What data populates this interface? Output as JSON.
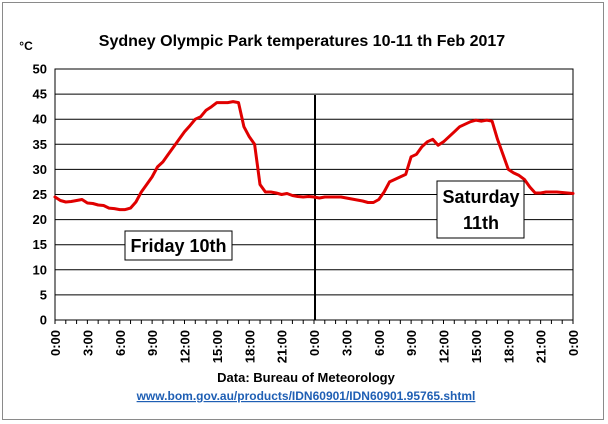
{
  "chart_data": {
    "type": "line",
    "title": "Sydney Olympic Park temperatures 10-11 th Feb 2017",
    "unit_label": "°C",
    "source": "Data: Bureau of Meteorology",
    "source_url": "www.bom.gov.au/products/IDN60901/IDN60901.95765.shtml",
    "ylim": [
      0,
      50
    ],
    "yticks": [
      "0",
      "5",
      "10",
      "15",
      "20",
      "25",
      "30",
      "35",
      "40",
      "45",
      "50"
    ],
    "xlim": [
      0,
      48
    ],
    "xtick_labels": [
      "0:00",
      "3:00",
      "6:00",
      "9:00",
      "12:00",
      "15:00",
      "18:00",
      "21:00",
      "0:00",
      "3:00",
      "6:00",
      "9:00",
      "12:00",
      "15:00",
      "18:00",
      "21:00",
      "0:00"
    ],
    "grid": true,
    "line_color": "#e00000",
    "annotations": [
      {
        "text": "Friday 10th"
      },
      {
        "text": "Saturday"
      },
      {
        "text": "11th"
      }
    ],
    "series": [
      {
        "x": [
          0,
          0.5,
          1,
          1.5,
          2,
          2.5,
          3,
          3.5,
          4,
          4.5,
          5,
          5.5,
          6,
          6.5,
          7,
          7.5,
          8,
          8.5,
          9,
          9.5,
          10,
          10.5,
          11,
          11.5,
          12,
          12.5,
          13,
          13.5,
          14,
          14.5,
          15,
          15.5,
          16,
          16.5,
          17,
          17.5,
          18,
          18.5,
          19,
          19.5,
          20,
          20.5,
          21,
          21.5,
          22,
          22.5,
          23,
          23.5,
          24,
          24.5,
          25,
          25.5,
          26,
          26.5,
          27,
          27.5,
          28,
          28.5,
          29,
          29.5,
          30,
          30.5,
          31,
          31.5,
          32,
          32.5,
          33,
          33.5,
          34,
          34.5,
          35,
          35.5,
          36,
          36.5,
          37,
          37.5,
          38,
          38.5,
          39,
          39.5,
          40,
          40.5,
          41,
          41.5,
          42,
          42.5,
          43,
          43.5,
          44,
          44.5,
          45,
          45.5,
          46,
          46.5,
          47,
          47.5,
          48
        ],
        "values": [
          24.5,
          23.8,
          23.5,
          23.6,
          23.8,
          24.0,
          23.3,
          23.2,
          22.9,
          22.8,
          22.3,
          22.2,
          22.0,
          22.0,
          22.3,
          23.5,
          25.5,
          27.0,
          28.5,
          30.5,
          31.5,
          33.0,
          34.5,
          36.0,
          37.5,
          38.7,
          40.0,
          40.5,
          41.8,
          42.5,
          43.3,
          43.3,
          43.3,
          43.5,
          43.3,
          38.5,
          36.5,
          35.0,
          27.0,
          25.5,
          25.5,
          25.3,
          25.0,
          25.2,
          24.8,
          24.6,
          24.5,
          24.6,
          24.5,
          24.3,
          24.5,
          24.5,
          24.5,
          24.5,
          24.3,
          24.1,
          23.9,
          23.7,
          23.4,
          23.4,
          24.0,
          25.5,
          27.5,
          28.0,
          28.5,
          29.0,
          32.5,
          33.0,
          34.5,
          35.5,
          36.0,
          34.8,
          35.5,
          36.5,
          37.5,
          38.5,
          39.0,
          39.5,
          39.8,
          39.6,
          39.8,
          39.6,
          36.0,
          33.0,
          30.0,
          29.3,
          28.8,
          28.0,
          26.5,
          25.3,
          25.3,
          25.5,
          25.5,
          25.5,
          25.4,
          25.3,
          25.2
        ]
      }
    ]
  }
}
